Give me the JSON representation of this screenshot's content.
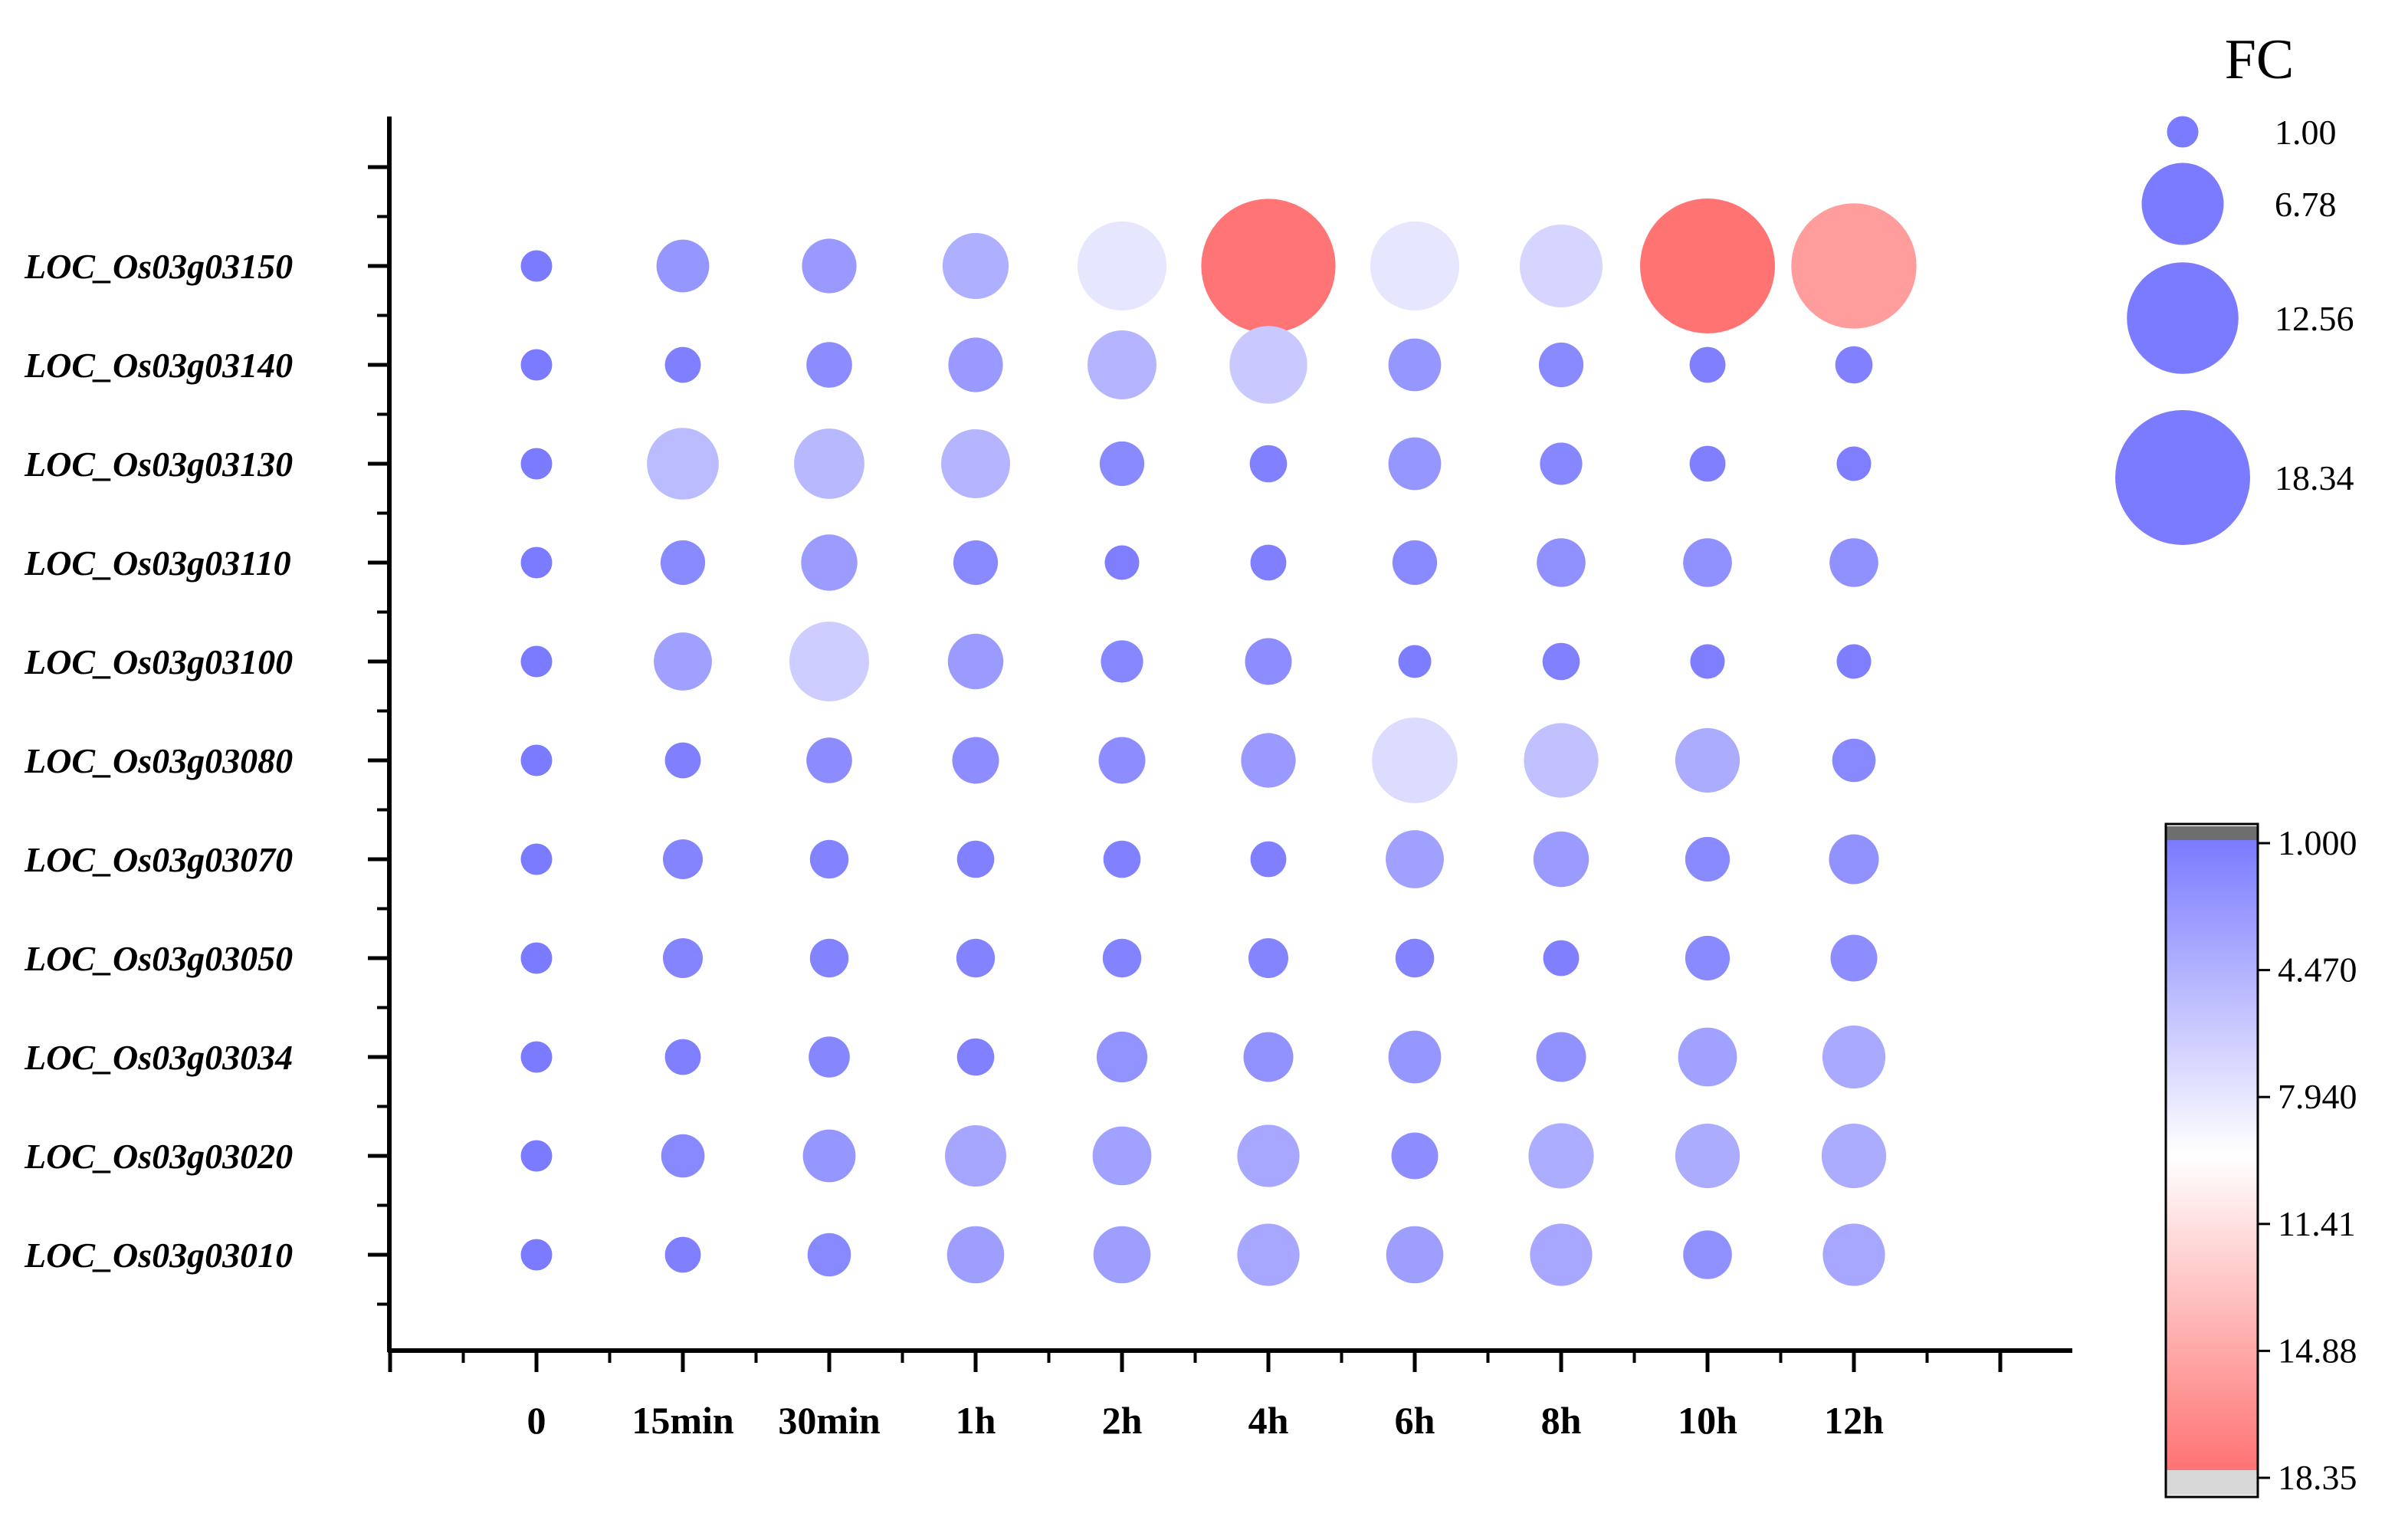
{
  "chart_data": {
    "type": "bubble",
    "categories": [
      "0",
      "15min",
      "30min",
      "1h",
      "2h",
      "4h",
      "6h",
      "8h",
      "10h",
      "12h"
    ],
    "genes": [
      "LOC_Os03g03150",
      "LOC_Os03g03140",
      "LOC_Os03g03130",
      "LOC_Os03g03110",
      "LOC_Os03g03100",
      "LOC_Os03g03080",
      "LOC_Os03g03070",
      "LOC_Os03g03050",
      "LOC_Os03g03034",
      "LOC_Os03g03020",
      "LOC_Os03g03010"
    ],
    "values": [
      [
        1.0,
        2.8,
        3.0,
        4.4,
        8.0,
        18.2,
        8.0,
        6.9,
        18.35,
        15.8
      ],
      [
        1.0,
        1.3,
        2.1,
        3.0,
        4.8,
        6.1,
        2.8,
        2.0,
        1.3,
        1.4
      ],
      [
        1.0,
        5.2,
        5.0,
        4.8,
        2.0,
        1.4,
        2.8,
        1.8,
        1.3,
        1.2
      ],
      [
        1.0,
        2.0,
        3.2,
        2.0,
        1.2,
        1.3,
        2.0,
        2.4,
        2.4,
        2.4
      ],
      [
        1.0,
        3.4,
        6.4,
        3.1,
        1.8,
        2.2,
        1.1,
        1.4,
        1.2,
        1.2
      ],
      [
        1.0,
        1.3,
        2.1,
        2.2,
        2.2,
        3.0,
        7.4,
        5.6,
        4.2,
        1.9
      ],
      [
        1.0,
        1.6,
        1.5,
        1.4,
        1.4,
        1.3,
        3.4,
        3.1,
        2.0,
        2.5
      ],
      [
        1.0,
        1.6,
        1.5,
        1.5,
        1.5,
        1.6,
        1.5,
        1.3,
        2.0,
        2.2
      ],
      [
        1.0,
        1.3,
        1.7,
        1.4,
        2.6,
        2.5,
        2.8,
        2.5,
        3.5,
        4.0
      ],
      [
        1.0,
        1.9,
        2.8,
        3.8,
        3.5,
        3.9,
        2.2,
        4.3,
        4.2,
        4.2
      ],
      [
        1.0,
        1.3,
        1.9,
        3.3,
        3.3,
        3.9,
        3.3,
        3.9,
        2.4,
        3.9
      ]
    ],
    "size_legend": {
      "title": "FC",
      "values": [
        1.0,
        6.78,
        12.56,
        18.34
      ],
      "labels": [
        "1.00",
        "6.78",
        "12.56",
        "18.34"
      ]
    },
    "color_scale": {
      "min": 1.0,
      "max": 18.35,
      "tick_values": [
        1.0,
        4.47,
        7.94,
        11.41,
        14.88,
        18.35
      ],
      "tick_labels": [
        "1.000",
        "4.470",
        "7.940",
        "11.41",
        "14.88",
        "18.35"
      ],
      "low_color": "#7b7bff",
      "mid_color": "#ffffff",
      "high_color": "#ff7373"
    }
  }
}
